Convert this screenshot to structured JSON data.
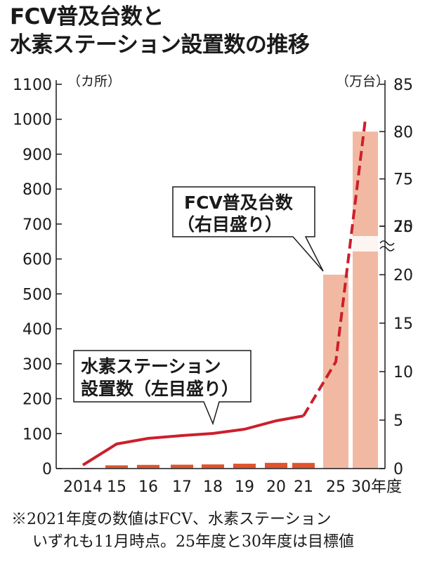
{
  "title": {
    "line1": "FCV普及台数と",
    "line2": "水素ステーション設置数の推移"
  },
  "note": {
    "line1": "※2021年度の数値はFCV、水素ステーション",
    "line2": "いずれも11月時点。25年度と30年度は目標値"
  },
  "colors": {
    "station_line": "#cc1f2c",
    "station_bar": "#e0542c",
    "fcv_bar": "#f2b9a2",
    "axis": "#1a1a1a"
  },
  "chart_data": {
    "type": "bar+line",
    "categories": [
      "2014",
      "15",
      "16",
      "17",
      "18",
      "19",
      "20",
      "21",
      "25",
      "30年度"
    ],
    "left_axis": {
      "unit_label": "（カ所）",
      "ylim": [
        0,
        1100
      ],
      "ticks": [
        "0",
        "100",
        "200",
        "300",
        "400",
        "500",
        "600",
        "700",
        "800",
        "900",
        "1000",
        "1100"
      ]
    },
    "right_axis": {
      "unit_label": "（万台）",
      "ylim": [
        0,
        85
      ],
      "ticks": [
        "0",
        "5",
        "10",
        "15",
        "20",
        "25",
        "70",
        "75",
        "80",
        "85"
      ],
      "axis_break": true
    },
    "series": [
      {
        "name": "水素ステーション設置数（左目盛り）",
        "axis": "left",
        "values": [
          0,
          80,
          95,
          101,
          110,
          132,
          160,
          154,
          320,
          1000
        ]
      },
      {
        "name": "FCV普及台数（右目盛り）",
        "axis": "right",
        "values": [
          0.01,
          0.06,
          0.12,
          0.22,
          0.3,
          0.36,
          0.48,
          0.6,
          20,
          80
        ]
      }
    ]
  },
  "callouts": {
    "fcv_line1": "FCV普及台数",
    "fcv_line2": "（右目盛り）",
    "station_line1": "水素ステーション",
    "station_line2": "設置数（左目盛り）"
  }
}
